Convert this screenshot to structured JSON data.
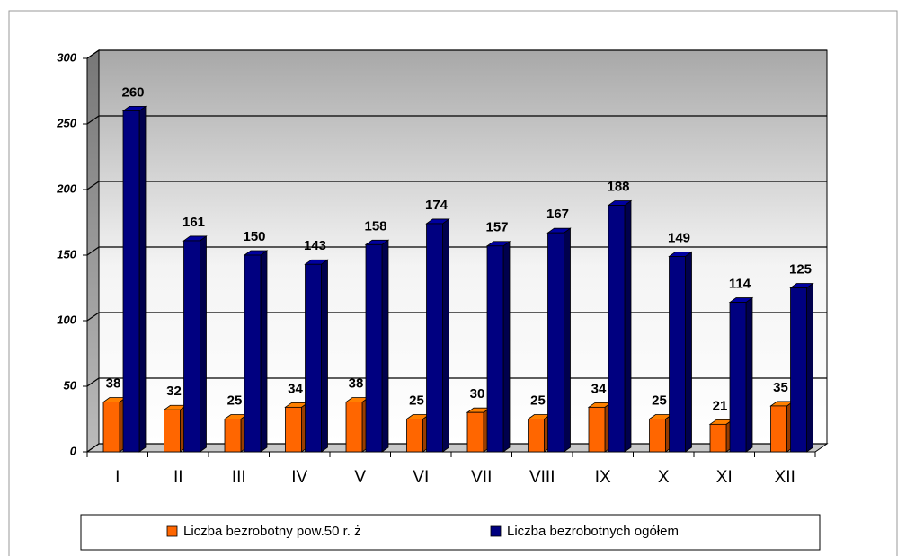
{
  "chart_data": {
    "type": "bar",
    "categories": [
      "I",
      "II",
      "III",
      "IV",
      "V",
      "VI",
      "VII",
      "VIII",
      "IX",
      "X",
      "XI",
      "XII"
    ],
    "series": [
      {
        "name": "Liczba bezrobotny pow.50 r. ż",
        "color": "#ff6600",
        "values": [
          38,
          32,
          25,
          34,
          38,
          25,
          30,
          25,
          34,
          25,
          21,
          35
        ]
      },
      {
        "name": "Liczba bezrobotnych ogółem",
        "color": "#000080",
        "values": [
          260,
          161,
          150,
          143,
          158,
          174,
          157,
          167,
          188,
          149,
          114,
          125
        ]
      }
    ],
    "ylim": [
      0,
      300
    ],
    "yticks": [
      0,
      50,
      100,
      150,
      200,
      250,
      300
    ],
    "grid": true,
    "legend": "bottom"
  }
}
